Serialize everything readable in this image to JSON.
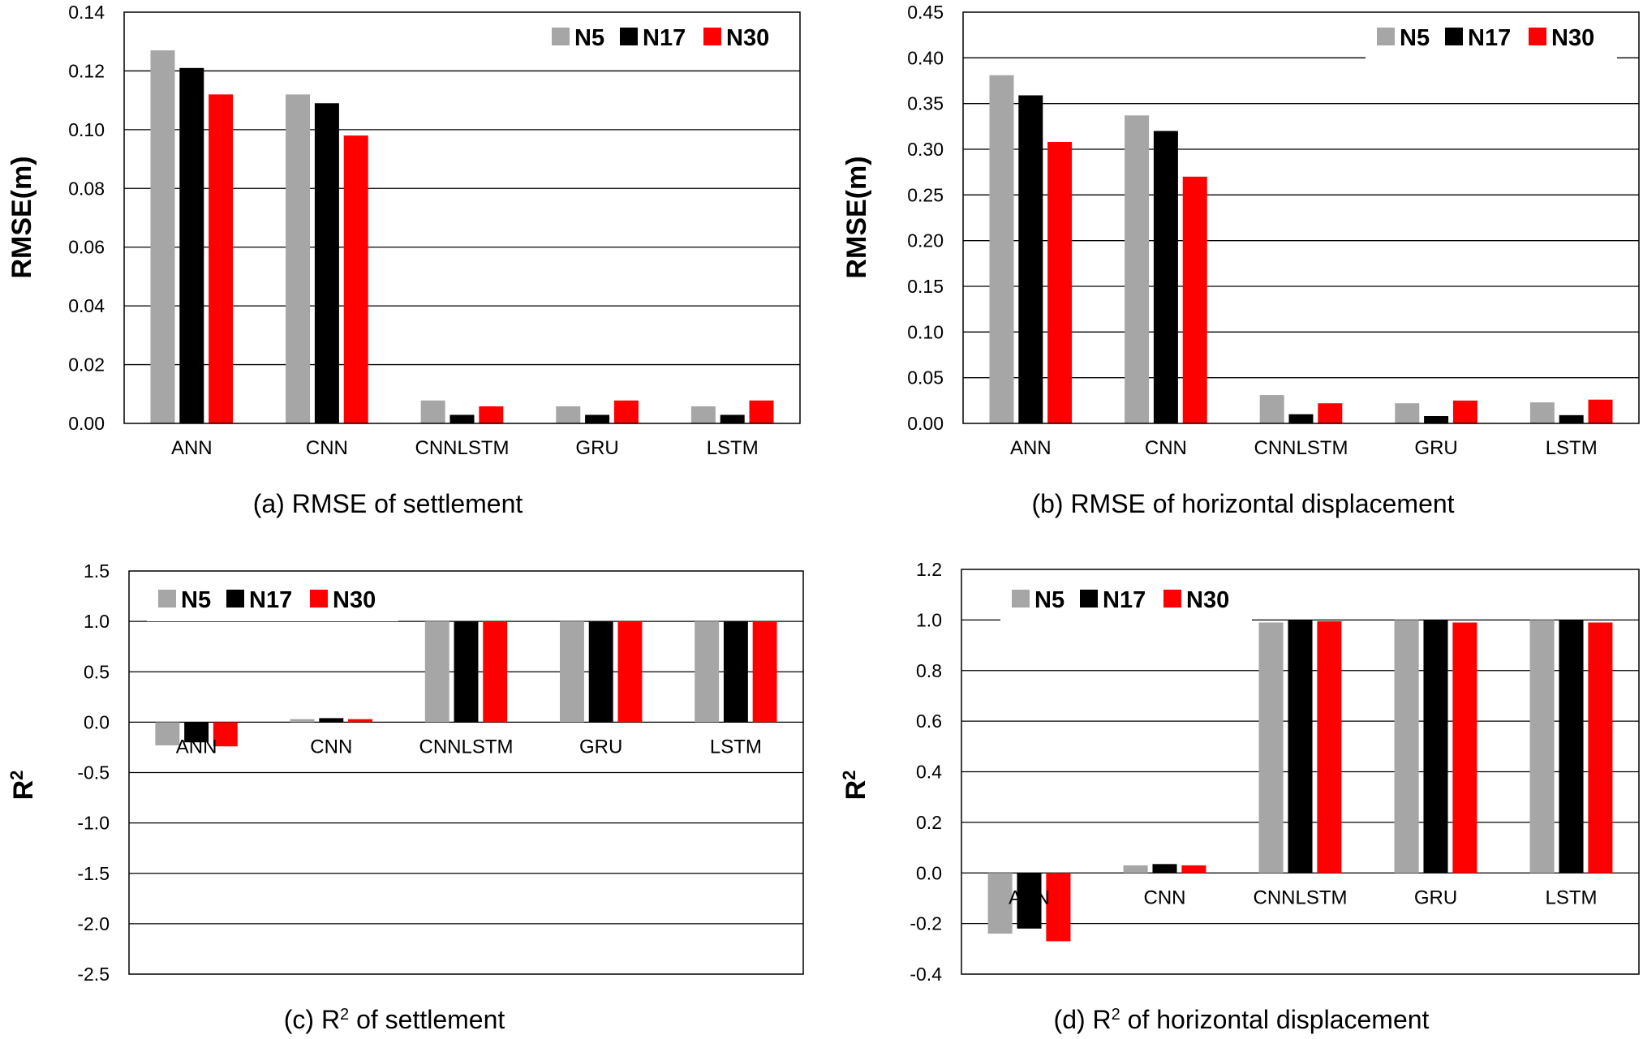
{
  "chart_data": [
    {
      "type": "bar",
      "caption": "(a) RMSE of settlement",
      "ylabel": "RMSE(m)",
      "categories": [
        "ANN",
        "CNN",
        "CNNLSTM",
        "GRU",
        "LSTM"
      ],
      "yticks": [
        "0.00",
        "0.02",
        "0.04",
        "0.06",
        "0.08",
        "0.10",
        "0.12",
        "0.14"
      ],
      "ylim": [
        0,
        0.14
      ],
      "grid": true,
      "legend_position": "top-right",
      "series": [
        {
          "name": "N5",
          "color": "#a6a6a6",
          "values": [
            0.127,
            0.112,
            0.0078,
            0.0058,
            0.0058
          ]
        },
        {
          "name": "N17",
          "color": "#000000",
          "values": [
            0.121,
            0.109,
            0.0029,
            0.0029,
            0.0029
          ]
        },
        {
          "name": "N30",
          "color": "#ff0000",
          "values": [
            0.112,
            0.098,
            0.0058,
            0.0078,
            0.0078
          ]
        }
      ]
    },
    {
      "type": "bar",
      "caption": "(b) RMSE of horizontal displacement",
      "ylabel": "RMSE(m)",
      "categories": [
        "ANN",
        "CNN",
        "CNNLSTM",
        "GRU",
        "LSTM"
      ],
      "yticks": [
        "0.00",
        "0.05",
        "0.10",
        "0.15",
        "0.20",
        "0.25",
        "0.30",
        "0.35",
        "0.40",
        "0.45"
      ],
      "ylim": [
        0,
        0.45
      ],
      "grid": true,
      "legend_position": "top-right",
      "series": [
        {
          "name": "N5",
          "color": "#a6a6a6",
          "values": [
            0.381,
            0.337,
            0.031,
            0.022,
            0.023
          ]
        },
        {
          "name": "N17",
          "color": "#000000",
          "values": [
            0.359,
            0.32,
            0.01,
            0.008,
            0.009
          ]
        },
        {
          "name": "N30",
          "color": "#ff0000",
          "values": [
            0.308,
            0.27,
            0.022,
            0.025,
            0.026
          ]
        }
      ]
    },
    {
      "type": "bar",
      "caption_prefix": "(c) R",
      "caption_sup": "2",
      "caption_suffix": " of settlement",
      "ylabel": "R",
      "ylabel_sup": "2",
      "categories": [
        "ANN",
        "CNN",
        "CNNLSTM",
        "GRU",
        "LSTM"
      ],
      "yticks": [
        "-2.5",
        "-2.0",
        "-1.5",
        "-1.0",
        "-0.5",
        "0.0",
        "0.5",
        "1.0",
        "1.5"
      ],
      "ylim": [
        -2.5,
        1.5
      ],
      "grid": true,
      "legend_position": "top-left",
      "series": [
        {
          "name": "N5",
          "color": "#a6a6a6",
          "values": [
            -0.23,
            0.03,
            1.0,
            1.0,
            1.0
          ]
        },
        {
          "name": "N17",
          "color": "#000000",
          "values": [
            -0.2,
            0.04,
            1.0,
            1.0,
            1.0
          ]
        },
        {
          "name": "N30",
          "color": "#ff0000",
          "values": [
            -0.24,
            0.03,
            1.0,
            1.0,
            1.0
          ]
        }
      ]
    },
    {
      "type": "bar",
      "caption_prefix": "(d) R",
      "caption_sup": "2",
      "caption_suffix": " of horizontal displacement",
      "ylabel": "R",
      "ylabel_sup": "2",
      "categories": [
        "ANN",
        "CNN",
        "CNNLSTM",
        "GRU",
        "LSTM"
      ],
      "yticks": [
        "-0.4",
        "-0.2",
        "0.0",
        "0.2",
        "0.4",
        "0.6",
        "0.8",
        "1.0",
        "1.2"
      ],
      "ylim": [
        -0.4,
        1.2
      ],
      "grid": true,
      "legend_position": "top-left",
      "series": [
        {
          "name": "N5",
          "color": "#a6a6a6",
          "values": [
            -0.24,
            0.03,
            0.99,
            1.0,
            1.0
          ]
        },
        {
          "name": "N17",
          "color": "#000000",
          "values": [
            -0.22,
            0.035,
            1.0,
            1.0,
            1.0
          ]
        },
        {
          "name": "N30",
          "color": "#ff0000",
          "values": [
            -0.27,
            0.03,
            0.995,
            0.99,
            0.99
          ]
        }
      ]
    }
  ]
}
